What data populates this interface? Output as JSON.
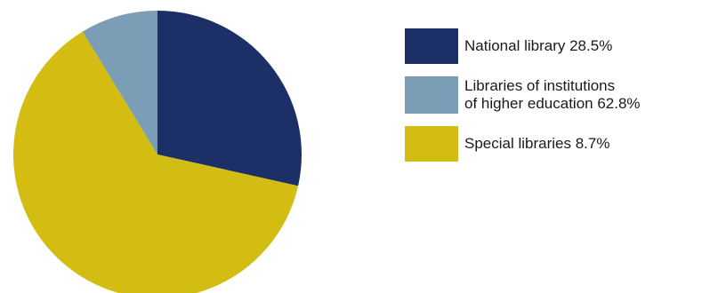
{
  "chart_data": {
    "type": "pie",
    "title": "",
    "slices": [
      {
        "label": "National library 28.5%",
        "value": 28.5,
        "color": "#1c2f66"
      },
      {
        "label": "Libraries of institutions\nof higher education 62.8%",
        "value": 62.8,
        "color": "#d3bd12"
      },
      {
        "label": "Special libraries 8.7%",
        "value": 8.7,
        "color": "#7b9db5"
      }
    ],
    "legend": {
      "placement": "right",
      "items": [
        {
          "label": "National library 28.5%",
          "color": "#1c2f66"
        },
        {
          "label": "Libraries of institutions\nof higher education 62.8%",
          "color": "#7b9db5"
        },
        {
          "label": "Special libraries 8.7%",
          "color": "#d3bd12"
        }
      ]
    }
  }
}
